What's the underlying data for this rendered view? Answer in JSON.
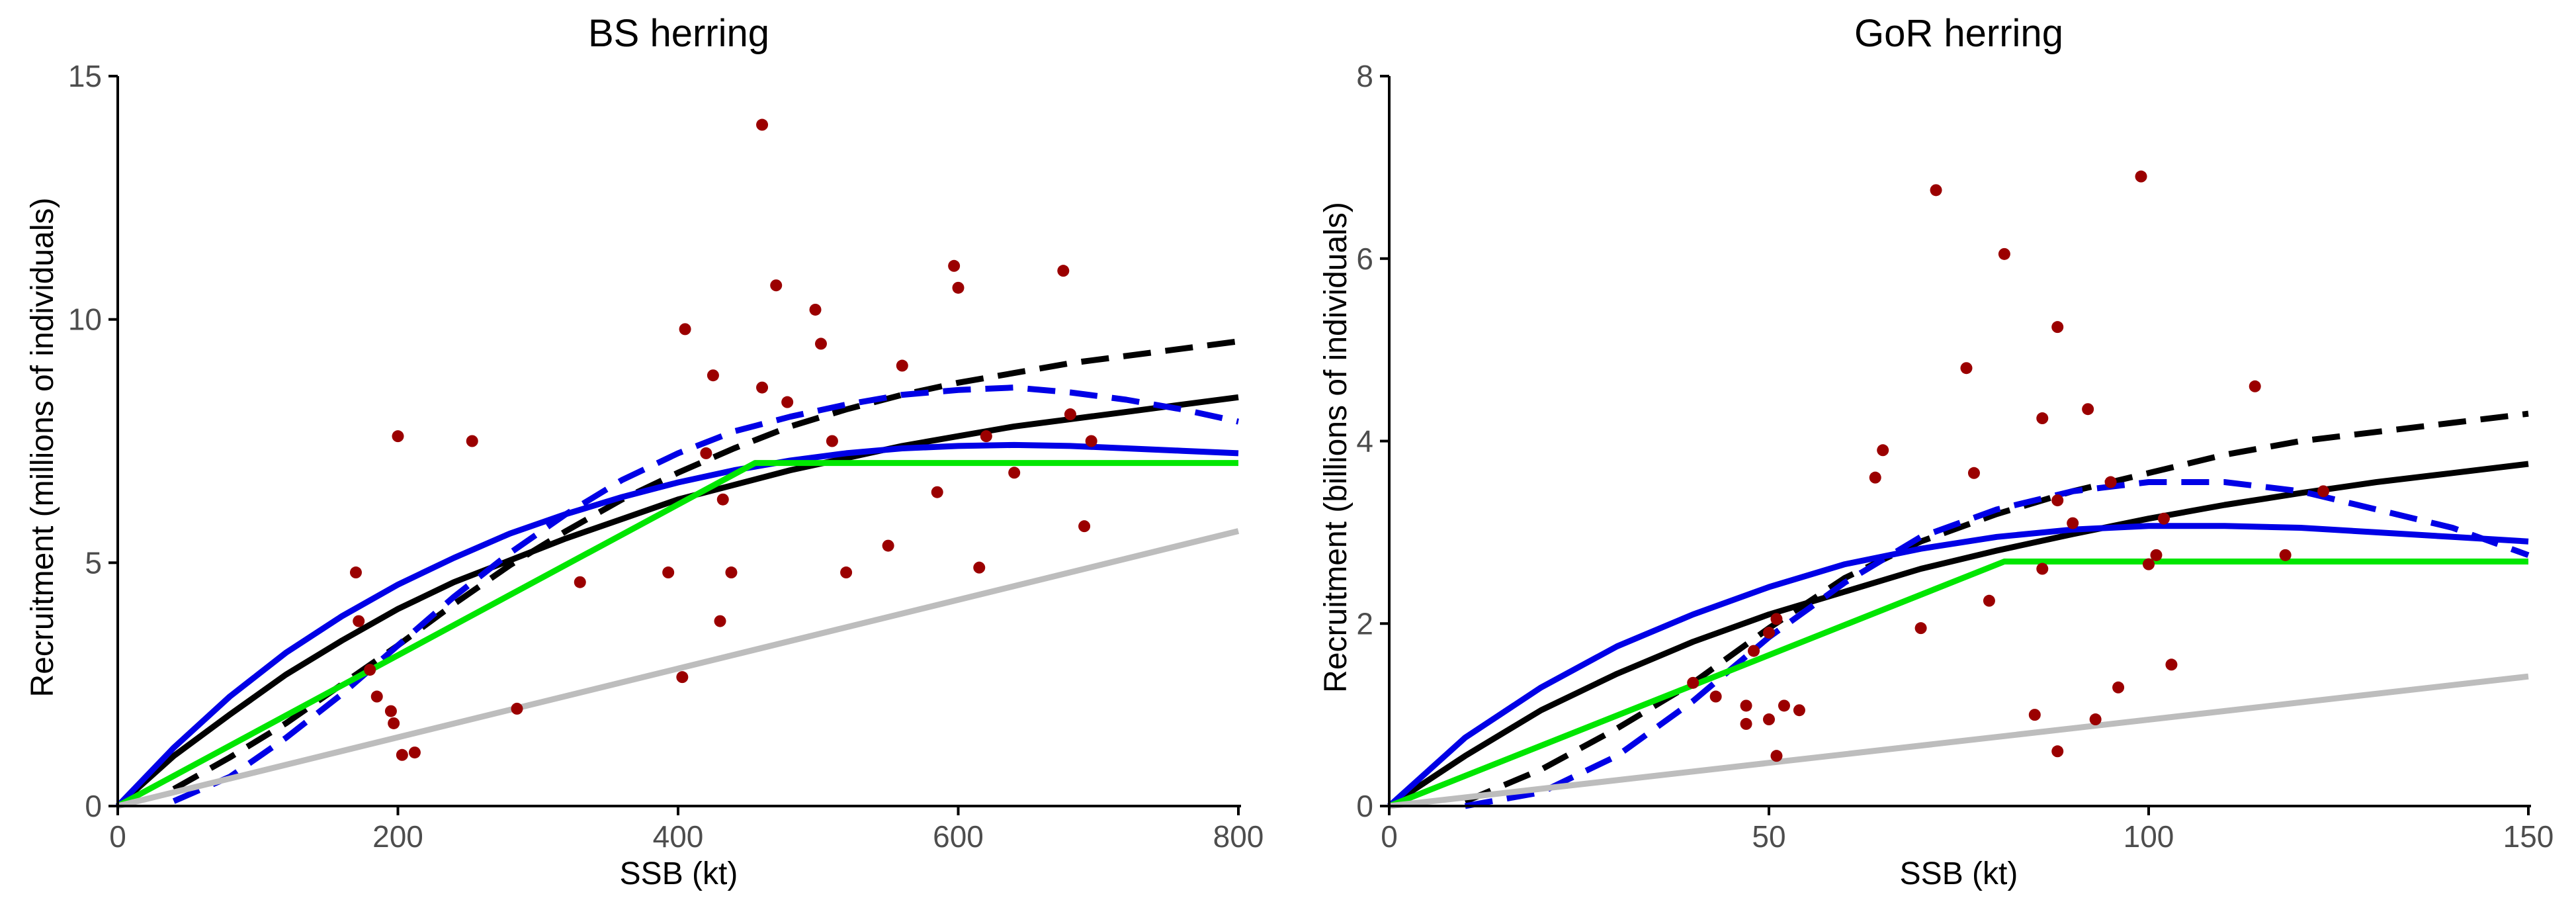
{
  "chart_data": [
    {
      "type": "scatter",
      "title": "BS herring",
      "xlabel": "SSB (kt)",
      "ylabel": "Recruitment (millions of individuals)",
      "xlim": [
        0,
        800
      ],
      "ylim": [
        0,
        15
      ],
      "xticks": [
        0,
        200,
        400,
        600,
        800
      ],
      "xtick_labels": [
        "0",
        "200",
        "400",
        "600",
        "800"
      ],
      "yticks": [
        0,
        5,
        10,
        15
      ],
      "ytick_labels": [
        "0",
        "5",
        "10",
        "15"
      ],
      "grid": false,
      "legend": "none",
      "series": [
        {
          "name": "observations",
          "kind": "scatter",
          "color": "#9b0000",
          "points": [
            [
              460,
              14
            ],
            [
              470,
              10.7
            ],
            [
              498,
              10.2
            ],
            [
              502,
              9.5
            ],
            [
              405,
              9.8
            ],
            [
              597,
              11.1
            ],
            [
              600,
              10.65
            ],
            [
              675,
              11
            ],
            [
              560,
              9.05
            ],
            [
              425,
              8.85
            ],
            [
              460,
              8.6
            ],
            [
              478,
              8.3
            ],
            [
              510,
              7.5
            ],
            [
              620,
              7.6
            ],
            [
              680,
              8.05
            ],
            [
              695,
              7.5
            ],
            [
              200,
              7.6
            ],
            [
              253,
              7.5
            ],
            [
              420,
              7.25
            ],
            [
              432,
              6.3
            ],
            [
              640,
              6.85
            ],
            [
              585,
              6.45
            ],
            [
              550,
              5.35
            ],
            [
              690,
              5.75
            ],
            [
              170,
              4.8
            ],
            [
              172,
              3.8
            ],
            [
              330,
              4.6
            ],
            [
              393,
              4.8
            ],
            [
              438,
              4.8
            ],
            [
              520,
              4.8
            ],
            [
              615,
              4.9
            ],
            [
              430,
              3.8
            ],
            [
              180,
              2.8
            ],
            [
              185,
              2.25
            ],
            [
              195,
              1.95
            ],
            [
              197,
              1.7
            ],
            [
              285,
              2.0
            ],
            [
              403,
              2.65
            ],
            [
              203,
              1.05
            ],
            [
              212,
              1.1
            ]
          ]
        },
        {
          "name": "solid-black",
          "kind": "line",
          "color": "#000000",
          "dash": false,
          "x": [
            0,
            40,
            80,
            120,
            160,
            200,
            240,
            280,
            320,
            360,
            400,
            440,
            480,
            520,
            560,
            600,
            640,
            680,
            720,
            760,
            800
          ],
          "y": [
            0,
            1.03,
            1.88,
            2.7,
            3.4,
            4.05,
            4.6,
            5.05,
            5.5,
            5.9,
            6.3,
            6.6,
            6.9,
            7.15,
            7.4,
            7.6,
            7.8,
            7.95,
            8.1,
            8.25,
            8.4
          ]
        },
        {
          "name": "dashed-black",
          "kind": "line",
          "color": "#000000",
          "dash": true,
          "x": [
            40,
            80,
            120,
            160,
            200,
            240,
            280,
            320,
            360,
            400,
            440,
            480,
            520,
            560,
            600,
            640,
            680,
            720,
            760,
            800
          ],
          "y": [
            0.35,
            1.0,
            1.7,
            2.5,
            3.3,
            4.15,
            4.95,
            5.65,
            6.3,
            6.85,
            7.35,
            7.8,
            8.15,
            8.45,
            8.7,
            8.9,
            9.1,
            9.25,
            9.4,
            9.55
          ]
        },
        {
          "name": "solid-blue",
          "kind": "line",
          "color": "#0000e6",
          "dash": false,
          "x": [
            0,
            40,
            80,
            120,
            160,
            200,
            240,
            280,
            320,
            360,
            400,
            440,
            480,
            520,
            560,
            600,
            640,
            680,
            720,
            760,
            800
          ],
          "y": [
            0,
            1.2,
            2.25,
            3.15,
            3.9,
            4.55,
            5.1,
            5.6,
            6.0,
            6.35,
            6.65,
            6.9,
            7.1,
            7.25,
            7.35,
            7.4,
            7.42,
            7.4,
            7.35,
            7.3,
            7.25
          ]
        },
        {
          "name": "dashed-blue",
          "kind": "line",
          "color": "#0000e6",
          "dash": true,
          "x": [
            40,
            80,
            120,
            160,
            200,
            240,
            280,
            320,
            360,
            400,
            440,
            480,
            520,
            560,
            600,
            640,
            680,
            720,
            760,
            800
          ],
          "y": [
            0.1,
            0.6,
            1.4,
            2.3,
            3.3,
            4.3,
            5.2,
            6.0,
            6.7,
            7.25,
            7.7,
            8.0,
            8.25,
            8.45,
            8.55,
            8.6,
            8.5,
            8.35,
            8.15,
            7.9
          ]
        },
        {
          "name": "green",
          "kind": "line",
          "color": "#00e600",
          "dash": false,
          "x": [
            0,
            455,
            800
          ],
          "y": [
            0,
            7.05,
            7.05
          ]
        },
        {
          "name": "grey",
          "kind": "line",
          "color": "#bdbdbd",
          "dash": false,
          "x": [
            0,
            800
          ],
          "y": [
            0,
            5.65
          ]
        }
      ]
    },
    {
      "type": "scatter",
      "title": "GoR herring",
      "xlabel": "SSB (kt)",
      "ylabel": "Recruitment (billions of individuals)",
      "xlim": [
        0,
        150
      ],
      "ylim": [
        0,
        8
      ],
      "xticks": [
        0,
        50,
        100,
        150
      ],
      "xtick_labels": [
        "0",
        "50",
        "100",
        "150"
      ],
      "yticks": [
        0,
        2,
        4,
        6,
        8
      ],
      "ytick_labels": [
        "0",
        "2",
        "4",
        "6",
        "8"
      ],
      "grid": false,
      "legend": "none",
      "series": [
        {
          "name": "observations",
          "kind": "scatter",
          "color": "#9b0000",
          "points": [
            [
              99,
              6.9
            ],
            [
              72,
              6.75
            ],
            [
              81,
              6.05
            ],
            [
              114,
              4.6
            ],
            [
              76,
              4.8
            ],
            [
              88,
              5.25
            ],
            [
              92,
              4.35
            ],
            [
              86,
              4.25
            ],
            [
              65,
              3.9
            ],
            [
              64,
              3.6
            ],
            [
              77,
              3.65
            ],
            [
              88,
              3.35
            ],
            [
              90,
              3.1
            ],
            [
              95,
              3.55
            ],
            [
              102,
              3.15
            ],
            [
              123,
              3.45
            ],
            [
              101,
              2.75
            ],
            [
              100,
              2.65
            ],
            [
              86,
              2.6
            ],
            [
              118,
              2.75
            ],
            [
              79,
              2.25
            ],
            [
              70,
              1.95
            ],
            [
              51,
              2.05
            ],
            [
              50,
              1.9
            ],
            [
              48,
              1.7
            ],
            [
              40,
              1.35
            ],
            [
              43,
              1.2
            ],
            [
              47,
              1.1
            ],
            [
              52,
              1.1
            ],
            [
              54,
              1.05
            ],
            [
              47,
              0.9
            ],
            [
              50,
              0.95
            ],
            [
              103,
              1.55
            ],
            [
              96,
              1.3
            ],
            [
              85,
              1.0
            ],
            [
              93,
              0.95
            ],
            [
              51,
              0.55
            ],
            [
              88,
              0.6
            ]
          ]
        },
        {
          "name": "solid-black",
          "kind": "line",
          "color": "#000000",
          "dash": false,
          "x": [
            0,
            10,
            20,
            30,
            40,
            50,
            60,
            70,
            80,
            90,
            100,
            110,
            120,
            130,
            140,
            150
          ],
          "y": [
            0,
            0.55,
            1.05,
            1.45,
            1.8,
            2.1,
            2.35,
            2.6,
            2.8,
            2.98,
            3.15,
            3.3,
            3.43,
            3.55,
            3.65,
            3.75
          ]
        },
        {
          "name": "dashed-black",
          "kind": "line",
          "color": "#000000",
          "dash": true,
          "x": [
            10,
            20,
            30,
            40,
            50,
            60,
            70,
            80,
            90,
            100,
            110,
            120,
            130,
            140,
            150
          ],
          "y": [
            0.05,
            0.4,
            0.85,
            1.35,
            1.95,
            2.5,
            2.9,
            3.2,
            3.45,
            3.65,
            3.85,
            4.0,
            4.1,
            4.2,
            4.3
          ]
        },
        {
          "name": "solid-blue",
          "kind": "line",
          "color": "#0000e6",
          "dash": false,
          "x": [
            0,
            10,
            20,
            30,
            40,
            50,
            60,
            70,
            80,
            90,
            100,
            110,
            120,
            130,
            140,
            150
          ],
          "y": [
            0,
            0.75,
            1.3,
            1.75,
            2.1,
            2.4,
            2.65,
            2.82,
            2.95,
            3.03,
            3.07,
            3.07,
            3.05,
            3.0,
            2.95,
            2.9
          ]
        },
        {
          "name": "dashed-blue",
          "kind": "line",
          "color": "#0000e6",
          "dash": true,
          "x": [
            10,
            20,
            30,
            40,
            50,
            60,
            70,
            80,
            90,
            100,
            110,
            120,
            130,
            140,
            150
          ],
          "y": [
            0,
            0.15,
            0.55,
            1.15,
            1.85,
            2.45,
            2.95,
            3.25,
            3.45,
            3.55,
            3.55,
            3.45,
            3.25,
            3.05,
            2.75
          ]
        },
        {
          "name": "green",
          "kind": "line",
          "color": "#00e600",
          "dash": false,
          "x": [
            0,
            81,
            150
          ],
          "y": [
            0,
            2.68,
            2.68
          ]
        },
        {
          "name": "grey",
          "kind": "line",
          "color": "#bdbdbd",
          "dash": false,
          "x": [
            0,
            150
          ],
          "y": [
            0,
            1.42
          ]
        }
      ]
    }
  ]
}
